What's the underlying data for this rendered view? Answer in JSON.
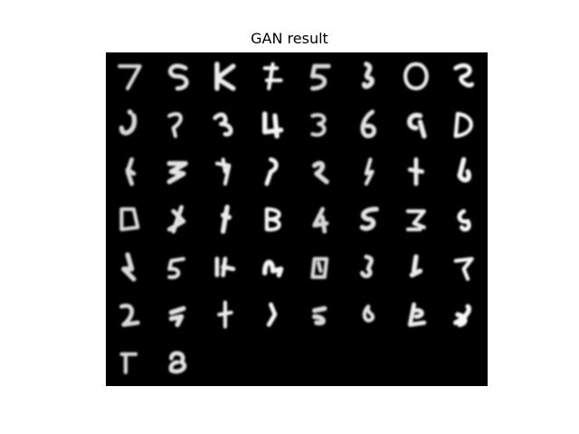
{
  "figure": {
    "title": "GAN result"
  },
  "image": {
    "description_kind": "grid-of-generated-digits",
    "background_color": "#000000",
    "stroke_color": "#ffffff",
    "columns": 8,
    "rows_filled": 6,
    "cells_last_row": 2,
    "total_cells": 50
  }
}
